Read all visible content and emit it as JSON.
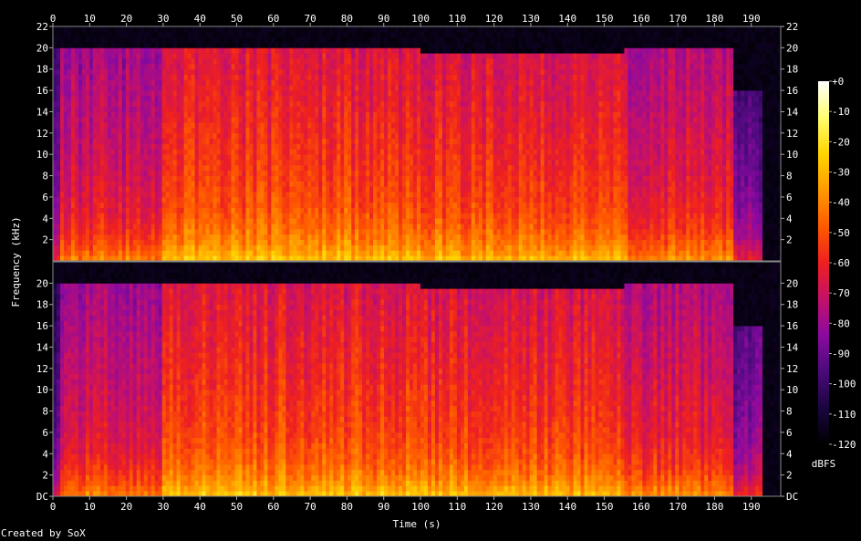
{
  "credit": "Created by SoX",
  "chart_data": {
    "type": "heatmap",
    "title": "",
    "xlabel": "Time (s)",
    "ylabel": "Frequency (kHz)",
    "xlim": [
      0,
      198
    ],
    "ylim": [
      0,
      22
    ],
    "x_ticks": [
      0,
      10,
      20,
      30,
      40,
      50,
      60,
      70,
      80,
      90,
      100,
      110,
      120,
      130,
      140,
      150,
      160,
      170,
      180,
      190
    ],
    "y_ticks_top": [
      {
        "v": 2,
        "t": "2"
      },
      {
        "v": 4,
        "t": "4"
      },
      {
        "v": 6,
        "t": "6"
      },
      {
        "v": 8,
        "t": "8"
      },
      {
        "v": 10,
        "t": "10"
      },
      {
        "v": 12,
        "t": "12"
      },
      {
        "v": 14,
        "t": "14"
      },
      {
        "v": 16,
        "t": "16"
      },
      {
        "v": 18,
        "t": "18"
      },
      {
        "v": 20,
        "t": "20"
      },
      {
        "v": 22,
        "t": "22"
      }
    ],
    "y_ticks_bottom": [
      {
        "v": 0,
        "t": "DC"
      },
      {
        "v": 2,
        "t": "2"
      },
      {
        "v": 4,
        "t": "4"
      },
      {
        "v": 6,
        "t": "6"
      },
      {
        "v": 8,
        "t": "8"
      },
      {
        "v": 10,
        "t": "10"
      },
      {
        "v": 12,
        "t": "12"
      },
      {
        "v": 14,
        "t": "14"
      },
      {
        "v": 16,
        "t": "16"
      },
      {
        "v": 18,
        "t": "18"
      },
      {
        "v": 20,
        "t": "20"
      }
    ],
    "channels": 2,
    "colorbar": {
      "label": "dBFS",
      "range": [
        -120,
        0
      ],
      "ticks": [
        {
          "v": 0,
          "t": "+0"
        },
        {
          "v": -10,
          "t": "-10"
        },
        {
          "v": -20,
          "t": "-20"
        },
        {
          "v": -30,
          "t": "-30"
        },
        {
          "v": -40,
          "t": "-40"
        },
        {
          "v": -50,
          "t": "-50"
        },
        {
          "v": -60,
          "t": "-60"
        },
        {
          "v": -70,
          "t": "-70"
        },
        {
          "v": -80,
          "t": "-80"
        },
        {
          "v": -90,
          "t": "-90"
        },
        {
          "v": -100,
          "t": "-100"
        },
        {
          "v": -110,
          "t": "-110"
        },
        {
          "v": -120,
          "t": "-120"
        }
      ],
      "stops": [
        "#000000",
        "#1a0540",
        "#4a0a7a",
        "#8a0aa0",
        "#c4106a",
        "#ee2020",
        "#ff5a00",
        "#ff9a00",
        "#ffd400",
        "#ffff70",
        "#ffffff"
      ]
    },
    "segments": [
      {
        "t0": 0,
        "t1": 2,
        "level": -85,
        "cutoff_khz": 20
      },
      {
        "t0": 2,
        "t1": 30,
        "level": -62,
        "cutoff_khz": 20
      },
      {
        "t0": 30,
        "t1": 100,
        "level": -48,
        "cutoff_khz": 20
      },
      {
        "t0": 100,
        "t1": 155,
        "level": -50,
        "cutoff_khz": 19.5
      },
      {
        "t0": 155,
        "t1": 185,
        "level": -58,
        "cutoff_khz": 20
      },
      {
        "t0": 185,
        "t1": 193,
        "level": -80,
        "cutoff_khz": 16
      },
      {
        "t0": 193,
        "t1": 198,
        "level": -115,
        "cutoff_khz": 0
      }
    ]
  }
}
